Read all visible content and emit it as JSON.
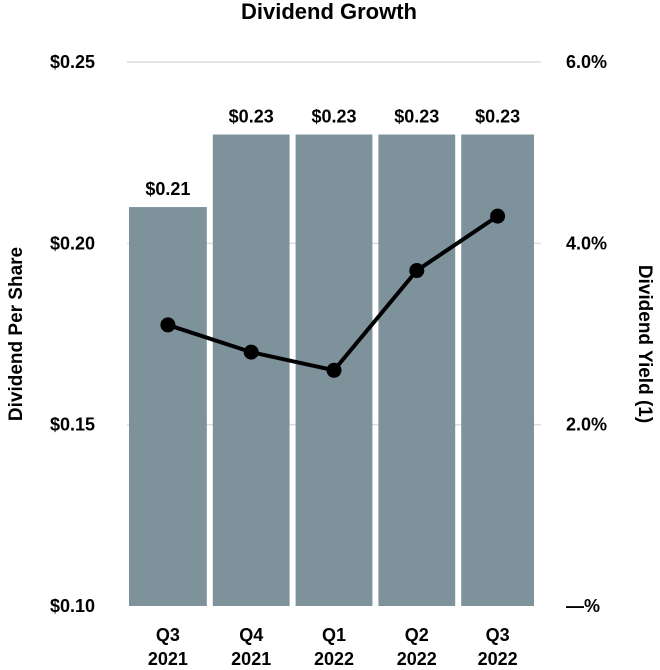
{
  "chart_data": {
    "type": "bar",
    "title": "Dividend Growth",
    "categories": [
      [
        "Q3",
        "2021"
      ],
      [
        "Q4",
        "2021"
      ],
      [
        "Q1",
        "2022"
      ],
      [
        "Q2",
        "2022"
      ],
      [
        "Q3",
        "2022"
      ]
    ],
    "ylabel": "Dividend Per Share",
    "y2label": "Dividend Yield (1)",
    "ylim": [
      0.1,
      0.25
    ],
    "y2lim": [
      0,
      6.0
    ],
    "yticks": [
      0.1,
      0.15,
      0.2,
      0.25
    ],
    "ytick_labels": [
      "$0.10",
      "$0.15",
      "$0.20",
      "$0.25"
    ],
    "y2ticks": [
      0,
      2.0,
      4.0,
      6.0
    ],
    "y2tick_labels": [
      "—%",
      "2.0%",
      "4.0%",
      "6.0%"
    ],
    "grid": true,
    "series": [
      {
        "type": "bar",
        "axis": "left",
        "values": [
          0.21,
          0.23,
          0.23,
          0.23,
          0.23
        ],
        "labels": [
          "$0.21",
          "$0.23",
          "$0.23",
          "$0.23",
          "$0.23"
        ],
        "color": "#7e929c"
      },
      {
        "type": "line",
        "axis": "right",
        "values": [
          3.1,
          2.8,
          2.6,
          3.7,
          4.3
        ],
        "color": "#000000"
      }
    ]
  }
}
